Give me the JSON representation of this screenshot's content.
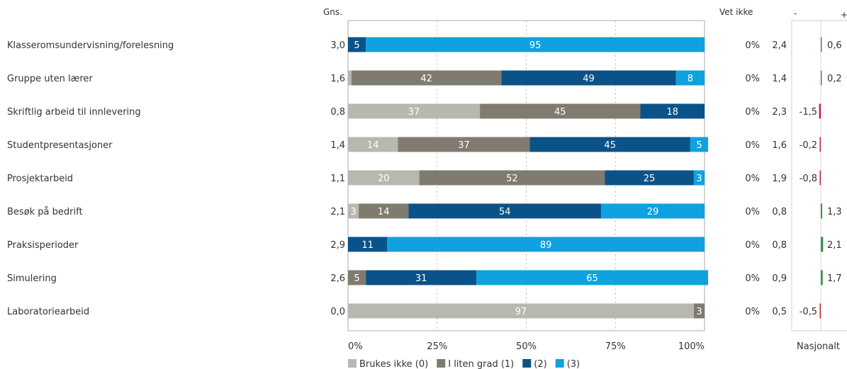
{
  "headers": {
    "avg": "Gns.",
    "dont_know": "Vet ikke",
    "minus": "-",
    "plus": "+",
    "national": "Nasjonalt"
  },
  "chart_data": {
    "type": "bar",
    "stacked": true,
    "orientation": "horizontal",
    "categories": [
      "Klasseromsundervisning/forelesning",
      "Gruppe uten lærer",
      "Skriftlig arbeid til innlevering",
      "Studentpresentasjoner",
      "Prosjektarbeid",
      "Besøk på bedrift",
      "Praksisperioder",
      "Simulering",
      "Laboratoriearbeid"
    ],
    "series": [
      {
        "name": "Brukes ikke (0)",
        "color": "#b8b8b0",
        "values": [
          0,
          1,
          37,
          14,
          20,
          3,
          0,
          0,
          97
        ]
      },
      {
        "name": "I liten grad (1)",
        "color": "#7f7b6f",
        "values": [
          0,
          42,
          45,
          37,
          52,
          14,
          0,
          5,
          3
        ]
      },
      {
        "name": "(2)",
        "color": "#0b5288",
        "values": [
          5,
          49,
          18,
          45,
          25,
          54,
          11,
          31,
          0
        ]
      },
      {
        "name": "(3)",
        "color": "#0fa1e0",
        "values": [
          95,
          8,
          0,
          5,
          3,
          29,
          89,
          65,
          0
        ]
      }
    ],
    "hidden_labels": [
      [
        false,
        false,
        false,
        false
      ],
      [
        true,
        false,
        false,
        false
      ],
      [
        false,
        false,
        false,
        false
      ],
      [
        false,
        false,
        false,
        false
      ],
      [
        false,
        false,
        false,
        false
      ],
      [
        false,
        false,
        false,
        false
      ],
      [
        false,
        false,
        false,
        false
      ],
      [
        false,
        false,
        false,
        false
      ],
      [
        false,
        false,
        false,
        false
      ]
    ],
    "averages": [
      "3,0",
      "1,6",
      "0,8",
      "1,4",
      "1,1",
      "2,1",
      "2,9",
      "2,6",
      "0,0"
    ],
    "dont_know": [
      "0%",
      "0%",
      "0%",
      "0%",
      "0%",
      "0%",
      "0%",
      "0%",
      "0%"
    ],
    "national_avg": [
      "2,4",
      "1,4",
      "2,3",
      "1,6",
      "1,9",
      "0,8",
      "0,8",
      "0,9",
      "0,5"
    ],
    "difference": [
      0.6,
      0.2,
      -1.5,
      -0.2,
      -0.8,
      1.3,
      2.1,
      1.7,
      -0.5
    ],
    "difference_labels": [
      "0,6",
      "0,2",
      "-1,5",
      "-0,2",
      "-0,8",
      "1,3",
      "2,1",
      "1,7",
      "-0,5"
    ],
    "x_ticks": [
      "0%",
      "25%",
      "50%",
      "75%",
      "100%"
    ],
    "xlim": [
      0,
      100
    ],
    "grid": true,
    "legend_position": "bottom",
    "colors": {
      "positive": "#3a9a3a",
      "negative": "#c0272d"
    }
  }
}
